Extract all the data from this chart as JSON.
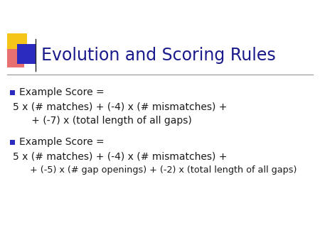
{
  "title": "Evolution and Scoring Rules",
  "title_color": "#1a1a8c",
  "title_fontsize": 17,
  "bg_color": "#ffffff",
  "bullet_color": "#2b2bbf",
  "body_color": "#1a1a1a",
  "body_fontsize": 10,
  "bullet1_label": "Example Score =",
  "bullet1_line1": "5 x (# matches) + (-4) x (# mismatches) +",
  "bullet1_line2": "      + (-7) x (total length of all gaps)",
  "bullet2_label": "Example Score =",
  "bullet2_line1": "5 x (# matches) + (-4) x (# mismatches) +",
  "bullet2_line2": "      + (-5) x (# gap openings) + (-2) x (total length of all gaps)",
  "header_line_color": "#888888",
  "square_yellow": "#f5c518",
  "square_red": "#e87070",
  "square_blue": "#2b2bbf"
}
